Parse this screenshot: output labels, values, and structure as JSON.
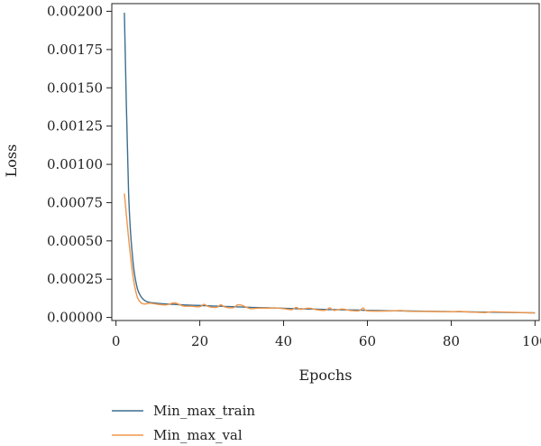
{
  "chart_data": {
    "type": "line",
    "title": "",
    "xlabel": "Epochs",
    "ylabel": "Loss",
    "xlim": [
      -1,
      101
    ],
    "ylim": [
      -2e-05,
      0.00205
    ],
    "xticks": [
      0,
      20,
      40,
      60,
      80,
      100
    ],
    "xtick_labels": [
      "0",
      "20",
      "40",
      "60",
      "80",
      "100"
    ],
    "yticks": [
      0,
      0.00025,
      0.0005,
      0.00075,
      0.001,
      0.00125,
      0.0015,
      0.00175,
      0.002
    ],
    "ytick_labels": [
      "0.00000",
      "0.00025",
      "0.00050",
      "0.00075",
      "0.00100",
      "0.00125",
      "0.00150",
      "0.00175",
      "0.00200"
    ],
    "grid": false,
    "legend_position": "bottom-left",
    "x": [
      2,
      3,
      4,
      5,
      6,
      7,
      8,
      10,
      12,
      14,
      16,
      18,
      20,
      21,
      22,
      24,
      25,
      26,
      28,
      29,
      30,
      32,
      34,
      36,
      38,
      40,
      42,
      43,
      44,
      46,
      48,
      50,
      51,
      52,
      54,
      56,
      58,
      59,
      60,
      65,
      68,
      70,
      75,
      80,
      82,
      85,
      88,
      90,
      95,
      100
    ],
    "series": [
      {
        "name": "Min_max_train",
        "color": "#3b6e8f",
        "values": [
          0.00199,
          0.00082,
          0.00038,
          0.0002,
          0.000135,
          0.000108,
          9.8e-05,
          9.2e-05,
          8.8e-05,
          8.5e-05,
          8.2e-05,
          8e-05,
          7.8e-05,
          7.7e-05,
          7.6e-05,
          7.4e-05,
          7.3e-05,
          7.2e-05,
          7e-05,
          6.9e-05,
          6.8e-05,
          6.6e-05,
          6.4e-05,
          6.3e-05,
          6.2e-05,
          6e-05,
          5.8e-05,
          5.7e-05,
          5.6e-05,
          5.5e-05,
          5.4e-05,
          5.2e-05,
          5.1e-05,
          5.1e-05,
          5e-05,
          4.9e-05,
          4.8e-05,
          4.7e-05,
          4.6e-05,
          4.4e-05,
          4.3e-05,
          4.2e-05,
          4e-05,
          3.8e-05,
          3.7e-05,
          3.6e-05,
          3.5e-05,
          3.4e-05,
          3.2e-05,
          3e-05
        ]
      },
      {
        "name": "Min_max_val",
        "color": "#f0964a",
        "values": [
          0.00081,
          0.00052,
          0.00028,
          0.00014,
          9.5e-05,
          8.8e-05,
          9.3e-05,
          8.6e-05,
          8.2e-05,
          9.5e-05,
          7.5e-05,
          7.3e-05,
          7e-05,
          8.6e-05,
          7.2e-05,
          6.6e-05,
          8.3e-05,
          6.8e-05,
          6.4e-05,
          8.2e-05,
          8e-05,
          5.8e-05,
          6.1e-05,
          6e-05,
          6.2e-05,
          5.7e-05,
          5.1e-05,
          6.6e-05,
          5.3e-05,
          6.1e-05,
          5e-05,
          4.7e-05,
          6.3e-05,
          4.6e-05,
          5.5e-05,
          4.5e-05,
          4.4e-05,
          6.2e-05,
          4.3e-05,
          4.2e-05,
          4.5e-05,
          4e-05,
          3.9e-05,
          3.7e-05,
          3.9e-05,
          3.5e-05,
          3.2e-05,
          3.7e-05,
          3.3e-05,
          3e-05
        ]
      }
    ]
  }
}
